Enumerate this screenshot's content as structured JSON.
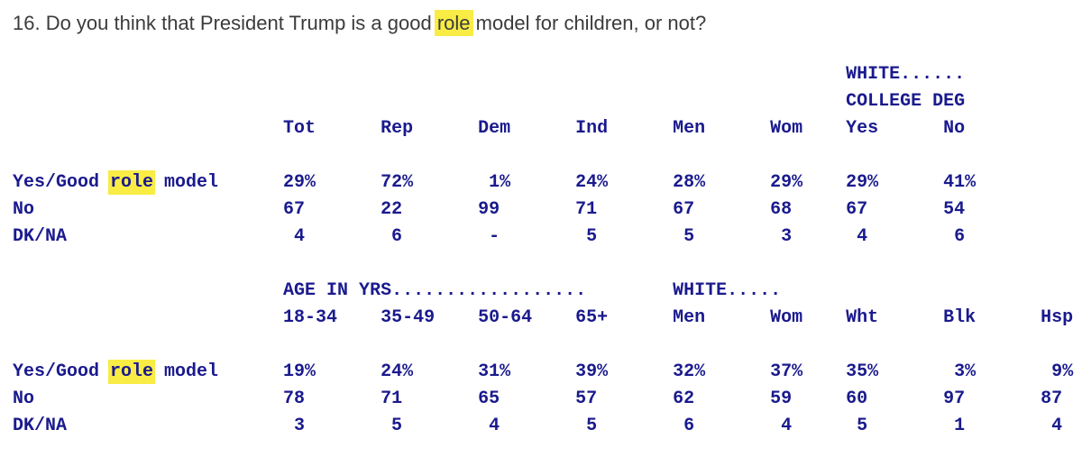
{
  "question": {
    "pre": "16. Do you think that President Trump is a good ",
    "highlight": "role",
    "post": " model for children, or not?"
  },
  "palette": {
    "table_text": "#1a1a8e",
    "title_text": "#3b3b3b",
    "highlight_yellow": "#f8ec45",
    "background": "#ffffff"
  },
  "crosstab": {
    "sections": [
      {
        "banner_lines": [
          [
            {
              "col_index": 6,
              "text": "WHITE......"
            }
          ],
          [
            {
              "col_index": 6,
              "text": "COLLEGE DEG"
            }
          ]
        ],
        "columns": [
          "Tot",
          "Rep",
          "Dem",
          "Ind",
          "Men",
          "Wom",
          "Yes",
          "No"
        ],
        "rows": [
          {
            "label_parts": [
              {
                "text": "Yes/Good "
              },
              {
                "text": "role",
                "highlight": true
              },
              {
                "text": " model"
              }
            ],
            "values": [
              "29%",
              "72%",
              "1%",
              "24%",
              "28%",
              "29%",
              "29%",
              "41%"
            ]
          },
          {
            "label_parts": [
              {
                "text": "No"
              }
            ],
            "values": [
              "67",
              "22",
              "99",
              "71",
              "67",
              "68",
              "67",
              "54"
            ]
          },
          {
            "label_parts": [
              {
                "text": "DK/NA"
              }
            ],
            "values": [
              "4",
              "6",
              "-",
              "5",
              "5",
              "3",
              "4",
              "6"
            ]
          }
        ]
      },
      {
        "banner_lines": [
          [
            {
              "col_index": 0,
              "text": "AGE IN YRS.................."
            },
            {
              "col_index": 4,
              "text": "WHITE....."
            }
          ]
        ],
        "columns": [
          "18-34",
          "35-49",
          "50-64",
          "65+",
          "Men",
          "Wom",
          "Wht",
          "Blk",
          "Hsp"
        ],
        "rows": [
          {
            "label_parts": [
              {
                "text": "Yes/Good "
              },
              {
                "text": "role",
                "highlight": true
              },
              {
                "text": " model"
              }
            ],
            "values": [
              "19%",
              "24%",
              "31%",
              "39%",
              "32%",
              "37%",
              "35%",
              "3%",
              "9%"
            ]
          },
          {
            "label_parts": [
              {
                "text": "No"
              }
            ],
            "values": [
              "78",
              "71",
              "65",
              "57",
              "62",
              "59",
              "60",
              "97",
              "87"
            ]
          },
          {
            "label_parts": [
              {
                "text": "DK/NA"
              }
            ],
            "values": [
              "3",
              "5",
              "4",
              "5",
              "6",
              "4",
              "5",
              "1",
              "4"
            ]
          }
        ]
      }
    ]
  }
}
